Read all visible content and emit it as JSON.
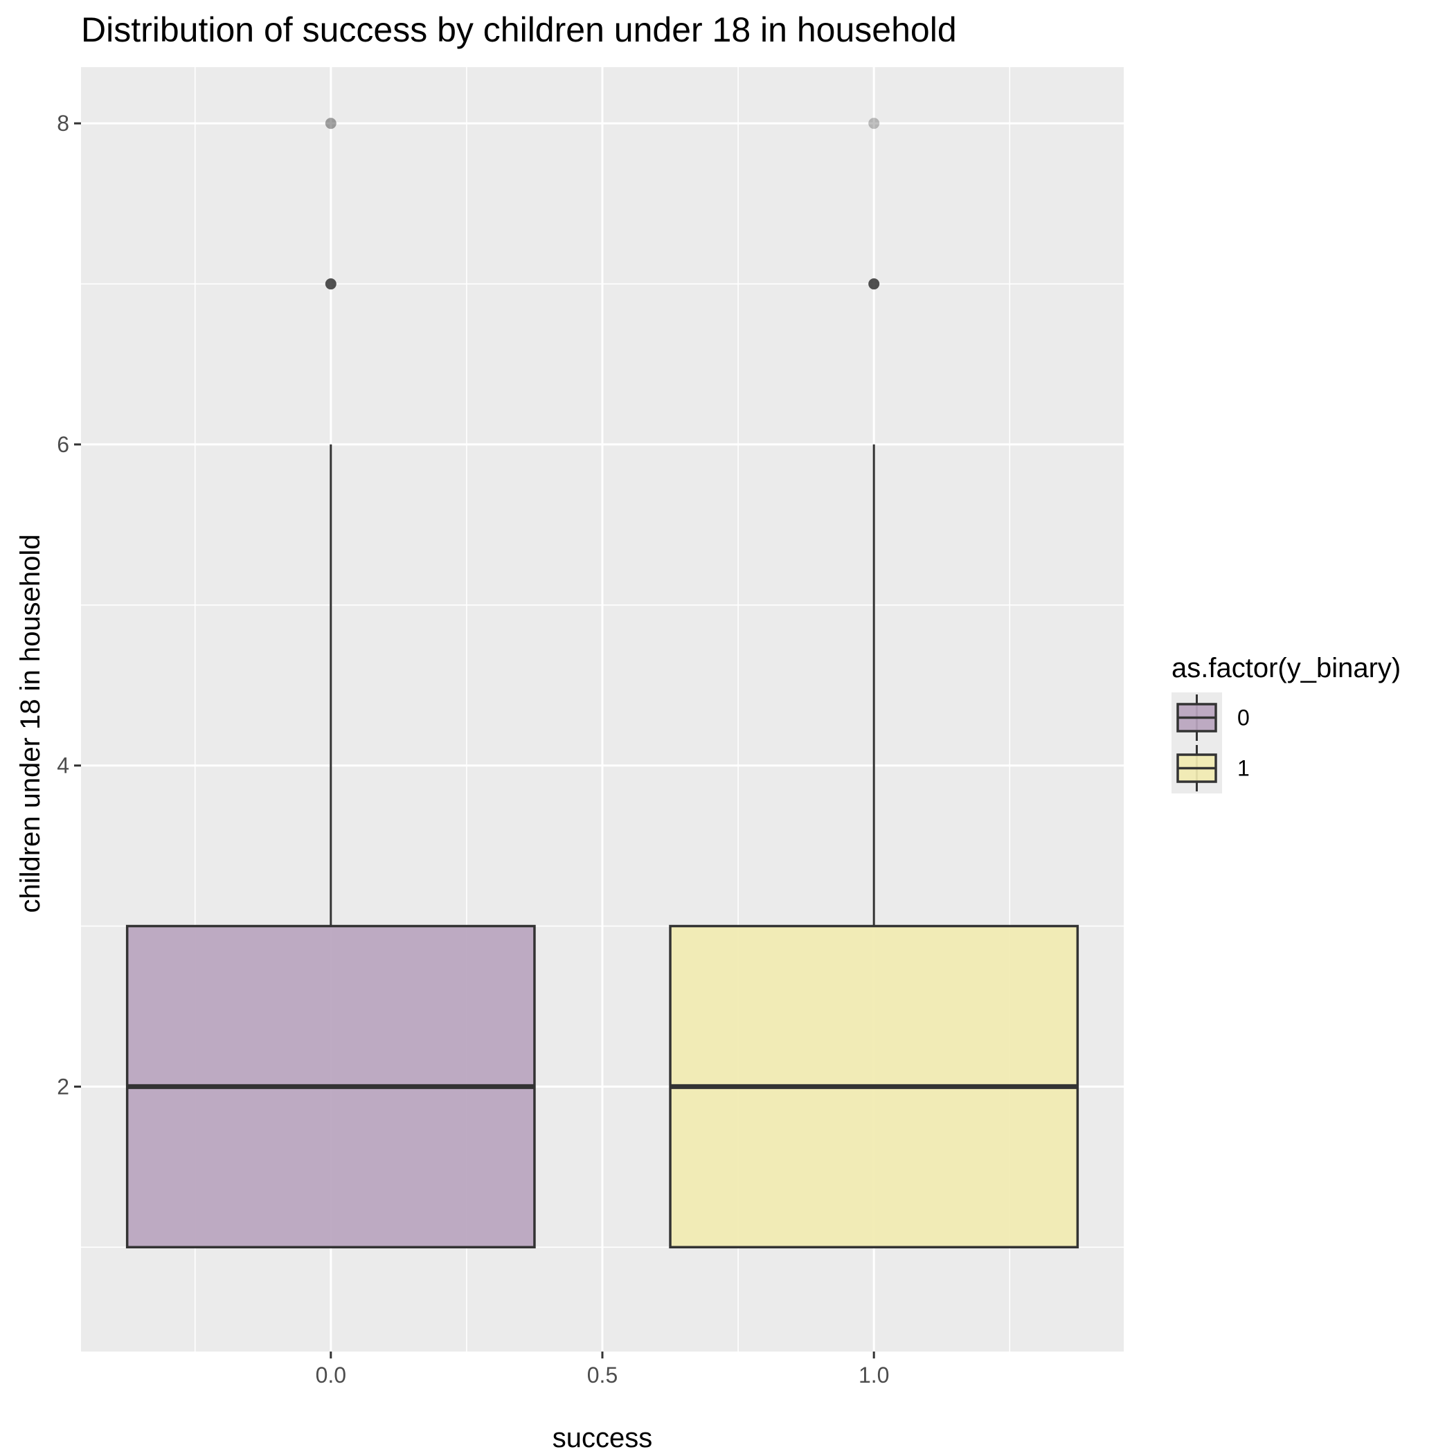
{
  "chart_data": {
    "type": "boxplot",
    "title": "Distribution of success by children under 18 in household",
    "xlabel": "success",
    "ylabel": "children under 18 in household",
    "xlim": [
      -0.46,
      1.46
    ],
    "ylim": [
      0.35,
      8.35
    ],
    "x_ticks": [
      0.0,
      0.5,
      1.0
    ],
    "x_tick_labels": [
      "0.0",
      "0.5",
      "1.0"
    ],
    "y_ticks": [
      2,
      4,
      6,
      8
    ],
    "y_tick_labels": [
      "2",
      "4",
      "6",
      "8"
    ],
    "grid": true,
    "legend": {
      "title": "as.factor(y_binary)",
      "position": "right",
      "entries": [
        "0",
        "1"
      ]
    },
    "series": [
      {
        "name": "0",
        "x": 0.0,
        "box_width": 0.75,
        "q1": 1,
        "median": 2,
        "q3": 3,
        "whisker_low": 1,
        "whisker_high": 6,
        "outliers": [
          7,
          8
        ],
        "color": "#b8a4be"
      },
      {
        "name": "1",
        "x": 1.0,
        "box_width": 0.75,
        "q1": 1,
        "median": 2,
        "q3": 3,
        "whisker_low": 1,
        "whisker_high": 6,
        "outliers": [
          7,
          8
        ],
        "color": "#f1eab1"
      }
    ]
  },
  "colors": {
    "panel_background": "#ebebeb",
    "grid_line": "#ffffff",
    "box_outline": "#333333",
    "outlier_point": "#333333"
  }
}
